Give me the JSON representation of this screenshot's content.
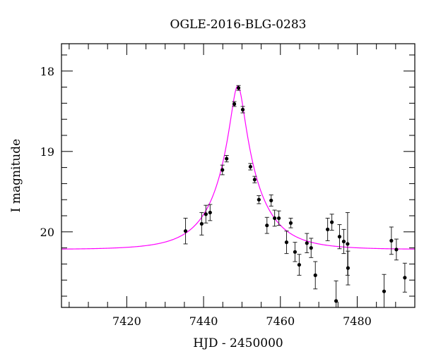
{
  "chart_data": {
    "type": "scatter",
    "title": "OGLE-2016-BLG-0283",
    "xlabel": "HJD - 2450000",
    "ylabel": "I magnitude",
    "xlim": [
      7403,
      7495
    ],
    "ylim": [
      20.94,
      17.66
    ],
    "y_inverted": true,
    "xticks": [
      7420,
      7440,
      7460,
      7480
    ],
    "xtick_labels": [
      "7420",
      "7440",
      "7460",
      "7480"
    ],
    "yticks": [
      18,
      19,
      20
    ],
    "ytick_labels": [
      "18",
      "19",
      "20"
    ],
    "x_minor_step": 5,
    "y_minor_step": 0.2,
    "grid": false,
    "colors": {
      "points": "#000000",
      "model": "#ff00ff"
    },
    "series": [
      {
        "name": "data",
        "x": [
          7435.3,
          7439.5,
          7440.6,
          7441.7,
          7444.9,
          7446.0,
          7448.0,
          7449.1,
          7450.2,
          7452.2,
          7453.3,
          7454.4,
          7456.5,
          7457.6,
          7458.5,
          7459.6,
          7461.6,
          7462.7,
          7463.8,
          7464.9,
          7466.9,
          7468.0,
          7469.1,
          7472.3,
          7473.4,
          7474.5,
          7475.4,
          7476.5,
          7477.5,
          7477.6,
          7487.0,
          7488.9,
          7490.2,
          7492.4
        ],
        "y": [
          19.99,
          19.9,
          19.78,
          19.76,
          19.23,
          19.09,
          18.41,
          18.21,
          18.48,
          19.19,
          19.35,
          19.6,
          19.92,
          19.61,
          19.83,
          19.83,
          20.13,
          19.89,
          20.25,
          20.41,
          20.14,
          20.2,
          20.54,
          19.97,
          19.88,
          20.86,
          20.06,
          20.12,
          20.15,
          20.45,
          20.74,
          20.11,
          20.22,
          20.57
        ],
        "yerr": [
          0.16,
          0.14,
          0.11,
          0.1,
          0.06,
          0.04,
          0.03,
          0.03,
          0.04,
          0.04,
          0.04,
          0.05,
          0.1,
          0.07,
          0.1,
          0.09,
          0.14,
          0.06,
          0.12,
          0.13,
          0.12,
          0.12,
          0.17,
          0.14,
          0.1,
          0.25,
          0.15,
          0.15,
          0.39,
          0.21,
          0.21,
          0.17,
          0.13,
          0.18
        ]
      },
      {
        "name": "model",
        "kind": "point-lens",
        "t0": 7448.9,
        "u0": 0.155,
        "tE": 10.9,
        "baseline_mag": 20.22
      }
    ]
  }
}
